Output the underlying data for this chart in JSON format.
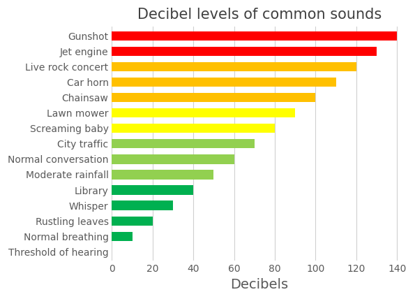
{
  "title": "Decibel levels of common sounds",
  "xlabel": "Decibels",
  "categories": [
    "Threshold of hearing",
    "Normal breathing",
    "Rustling leaves",
    "Whisper",
    "Library",
    "Moderate rainfall",
    "Normal conversation",
    "City traffic",
    "Screaming baby",
    "Lawn mower",
    "Chainsaw",
    "Car horn",
    "Live rock concert",
    "Jet engine",
    "Gunshot"
  ],
  "values": [
    0,
    10,
    20,
    30,
    40,
    50,
    60,
    70,
    80,
    90,
    100,
    110,
    120,
    130,
    140
  ],
  "colors": [
    "#92d050",
    "#00b050",
    "#00b050",
    "#00b050",
    "#00b050",
    "#92d050",
    "#92d050",
    "#92d050",
    "#ffff00",
    "#ffff00",
    "#ffc000",
    "#ffc000",
    "#ffc000",
    "#ff0000",
    "#ff0000"
  ],
  "xlim": [
    0,
    145
  ],
  "xticks": [
    0,
    20,
    40,
    60,
    80,
    100,
    120,
    140
  ],
  "title_fontsize": 15,
  "label_fontsize": 13,
  "tick_fontsize": 10,
  "bar_height": 0.6,
  "background_color": "#ffffff",
  "grid_color": "#d0d0d0",
  "text_color": "#7f7f7f",
  "label_color": "#595959",
  "title_color": "#404040"
}
